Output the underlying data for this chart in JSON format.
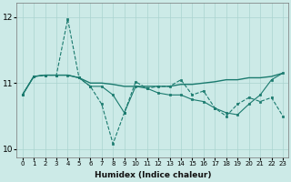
{
  "xlabel": "Humidex (Indice chaleur)",
  "ylabel": "",
  "background_color": "#cceae7",
  "grid_color": "#aad4d0",
  "line_color": "#1a7a6e",
  "xlim": [
    -0.5,
    23.5
  ],
  "ylim": [
    9.88,
    12.22
  ],
  "yticks": [
    10,
    11,
    12
  ],
  "xticks": [
    0,
    1,
    2,
    3,
    4,
    5,
    6,
    7,
    8,
    9,
    10,
    11,
    12,
    13,
    14,
    15,
    16,
    17,
    18,
    19,
    20,
    21,
    22,
    23
  ],
  "x": [
    0,
    1,
    2,
    3,
    4,
    5,
    6,
    7,
    8,
    9,
    10,
    11,
    12,
    13,
    14,
    15,
    16,
    17,
    18,
    19,
    20,
    21,
    22,
    23
  ],
  "series_spike": [
    10.82,
    11.1,
    11.12,
    11.12,
    11.97,
    11.08,
    10.95,
    10.68,
    10.08,
    10.55,
    11.02,
    10.92,
    10.95,
    10.95,
    11.05,
    10.82,
    10.88,
    10.62,
    10.5,
    10.68,
    10.78,
    10.72,
    10.78,
    10.5
  ],
  "series_flat": [
    10.82,
    11.1,
    11.12,
    11.12,
    11.12,
    11.08,
    11.0,
    11.0,
    10.98,
    10.95,
    10.95,
    10.95,
    10.95,
    10.95,
    10.98,
    10.98,
    11.0,
    11.02,
    11.05,
    11.05,
    11.08,
    11.08,
    11.1,
    11.15
  ],
  "series_wavy": [
    10.82,
    11.1,
    11.12,
    11.12,
    11.12,
    11.08,
    10.95,
    10.95,
    10.82,
    10.55,
    10.95,
    10.92,
    10.85,
    10.82,
    10.82,
    10.75,
    10.72,
    10.62,
    10.55,
    10.52,
    10.68,
    10.82,
    11.05,
    11.15
  ]
}
